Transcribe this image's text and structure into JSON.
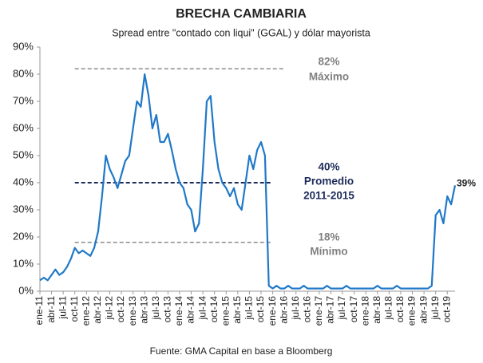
{
  "chart_data": {
    "type": "line",
    "title": "BRECHA CAMBIARIA",
    "subtitle": "Spread entre \"contado con liqui\" (GGAL) y dólar mayorista",
    "source": "Fuente: GMA Capital en base a Bloomberg",
    "categories": [
      "ene-11",
      null,
      null,
      "abr-11",
      null,
      null,
      "jul-11",
      null,
      null,
      "oct-11",
      null,
      null,
      "ene-12",
      null,
      null,
      "abr-12",
      null,
      null,
      "jul-12",
      null,
      null,
      "oct-12",
      null,
      null,
      "ene-13",
      null,
      null,
      "abr-13",
      null,
      null,
      "jul-13",
      null,
      null,
      "oct-13",
      null,
      null,
      "ene-14",
      null,
      null,
      "abr-14",
      null,
      null,
      "jul-14",
      null,
      null,
      "oct-14",
      null,
      null,
      "ene-15",
      null,
      null,
      "abr-15",
      null,
      null,
      "jul-15",
      null,
      null,
      "oct-15",
      null,
      null,
      "ene-16",
      null,
      null,
      "abr-16",
      null,
      null,
      "jul-16",
      null,
      null,
      "oct-16",
      null,
      null,
      "ene-17",
      null,
      null,
      "abr-17",
      null,
      null,
      "jul-17",
      null,
      null,
      "oct-17",
      null,
      null,
      "ene-18",
      null,
      null,
      "abr-18",
      null,
      null,
      "jul-18",
      null,
      null,
      "oct-18",
      null,
      null,
      "ene-19",
      null,
      null,
      "abr-19",
      null,
      null,
      "jul-19",
      null,
      null,
      "oct-19",
      null,
      null
    ],
    "series": [
      {
        "name": "Brecha",
        "color": "#1f78c8",
        "values": [
          4,
          5,
          4,
          6,
          8,
          6,
          7,
          9,
          12,
          16,
          14,
          15,
          14,
          13,
          16,
          22,
          35,
          50,
          45,
          42,
          38,
          43,
          48,
          50,
          60,
          70,
          68,
          80,
          72,
          60,
          65,
          55,
          55,
          58,
          52,
          45,
          40,
          38,
          32,
          30,
          22,
          25,
          45,
          70,
          72,
          55,
          45,
          40,
          38,
          35,
          38,
          32,
          30,
          40,
          50,
          45,
          52,
          55,
          50,
          2,
          1,
          2,
          1,
          1,
          2,
          1,
          1,
          1,
          2,
          1,
          1,
          1,
          1,
          1,
          2,
          1,
          1,
          1,
          1,
          2,
          1,
          1,
          1,
          1,
          1,
          1,
          1,
          2,
          1,
          1,
          1,
          1,
          2,
          1,
          1,
          1,
          1,
          1,
          1,
          1,
          1,
          2,
          28,
          30,
          25,
          35,
          32,
          39
        ]
      }
    ],
    "ylim": [
      0,
      90
    ],
    "yticks": [
      {
        "value": 0,
        "label": "0%"
      },
      {
        "value": 10,
        "label": "10%"
      },
      {
        "value": 20,
        "label": "20%"
      },
      {
        "value": 30,
        "label": "30%"
      },
      {
        "value": 40,
        "label": "40%"
      },
      {
        "value": 50,
        "label": "50%"
      },
      {
        "value": 60,
        "label": "60%"
      },
      {
        "value": 70,
        "label": "70%"
      },
      {
        "value": 80,
        "label": "80%"
      },
      {
        "value": 90,
        "label": "90%"
      }
    ],
    "reference_lines": [
      {
        "value": 82,
        "label": "82%",
        "name": "Máximo",
        "color": "#808080"
      },
      {
        "value": 40,
        "label": "40%",
        "name": "Promedio",
        "period": "2011-2015",
        "color": "#1c2b5a"
      },
      {
        "value": 18,
        "label": "18%",
        "name": "Mínimo",
        "color": "#808080"
      }
    ],
    "end_label": "39%",
    "grid": false
  }
}
